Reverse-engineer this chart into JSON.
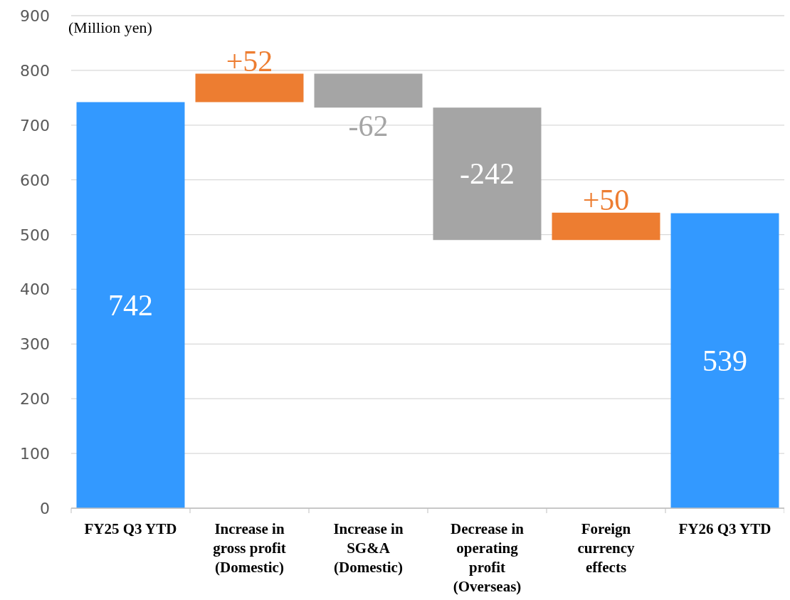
{
  "chart_data": {
    "type": "bar",
    "categories": [
      "FY25 Q3 YTD",
      "Increase in\ngross profit\n(Domestic)",
      "Increase in\nSG&A\n(Domestic)",
      "Decrease in\noperating\nprofit\n(Overseas)",
      "Foreign\ncurrency\neffects",
      "FY26 Q3 YTD"
    ],
    "values": [
      742,
      52,
      -62,
      -242,
      50,
      539
    ],
    "base": [
      0,
      742,
      794,
      732,
      490,
      0
    ],
    "colors": [
      "#3399ff",
      "#ed7d31",
      "#a5a5a5",
      "#a5a5a5",
      "#ed7d31",
      "#3399ff"
    ],
    "value_labels": [
      "742",
      "+52",
      "-62",
      "-242",
      "+50",
      "539"
    ],
    "ylim": [
      0,
      900
    ],
    "yticks": [
      0,
      100,
      200,
      300,
      400,
      500,
      600,
      700,
      800,
      900
    ],
    "grid": "y",
    "annotations": [
      "(Million yen)"
    ]
  }
}
